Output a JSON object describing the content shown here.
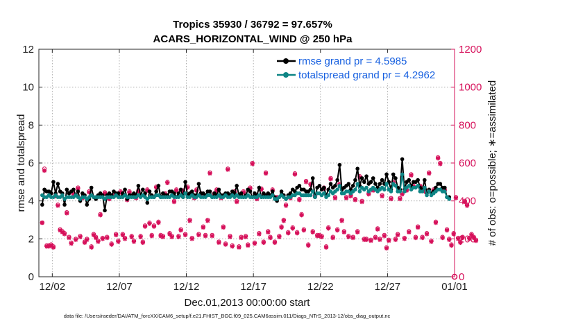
{
  "chart_data": {
    "type": "line",
    "title_line1": "Tropics 35930 / 36792 = 97.657%",
    "title_line2": "ACARS_HORIZONTAL_WIND @ 250 hPa",
    "xlabel": "Dec.01,2013 00:00:00 start",
    "ylabel_left": "rmse and totalspread",
    "ylabel_right": "# of obs: o=possible; ∗=assimilated",
    "xlim": [
      0,
      31
    ],
    "ylim_left": [
      0,
      12
    ],
    "ylim_right": [
      0,
      1200
    ],
    "x_ticks": [
      {
        "x": 1,
        "label": "12/02"
      },
      {
        "x": 6,
        "label": "12/07"
      },
      {
        "x": 11,
        "label": "12/12"
      },
      {
        "x": 16,
        "label": "12/17"
      },
      {
        "x": 21,
        "label": "12/22"
      },
      {
        "x": 26,
        "label": "12/27"
      },
      {
        "x": 31,
        "label": "01/01"
      }
    ],
    "y_ticks_left": [
      "0",
      "2",
      "4",
      "6",
      "8",
      "10",
      "12"
    ],
    "y_ticks_right": [
      "0",
      "200",
      "400",
      "600",
      "800",
      "1000",
      "1200"
    ],
    "legend": {
      "rmse": "rmse grand pr = 4.5985",
      "spread": "totalspread grand pr = 4.2962"
    },
    "footnote": "data file: /Users/raeder/DAI/ATM_forcXX/CAM6_setup/f.e21.FHIST_BGC.f09_025.CAM6assim.011/Diags_NTrS_2013-12/obs_diag_output.nc",
    "colors": {
      "rmse": "#000000",
      "spread": "#0e8585",
      "obs": "#d6105a"
    },
    "rmse_series": [
      3.8,
      4.6,
      4.5,
      4.5,
      4.4,
      5.0,
      4.4,
      4.9,
      4.5,
      4.4,
      3.8,
      4.6,
      4.4,
      4.5,
      4.6,
      4.3,
      4.5,
      4.0,
      4.4,
      4.3,
      3.8,
      4.1,
      4.7,
      4.2,
      4.1,
      4.3,
      4.4,
      4.3,
      3.5,
      4.3,
      4.4,
      4.3,
      4.5,
      4.4,
      4.4,
      4.2,
      4.4,
      4.6,
      4.1,
      4.3,
      4.3,
      4.4,
      4.3,
      4.8,
      4.3,
      4.6,
      4.4,
      3.9,
      4.5,
      4.3,
      4.2,
      4.5,
      4.8,
      4.2,
      4.4,
      4.3,
      4.3,
      4.5,
      4.5,
      4.4,
      4.2,
      4.4,
      4.6,
      4.2,
      5.0,
      4.3,
      4.4,
      4.5,
      4.3,
      4.3,
      4.9,
      4.4,
      4.4,
      4.3,
      4.5,
      4.5,
      4.2,
      4.4,
      4.3,
      4.6,
      4.3,
      4.3,
      4.4,
      4.4,
      4.3,
      4.5,
      4.4,
      4.8,
      4.3,
      4.4,
      4.2,
      4.3,
      4.6,
      4.5,
      4.2,
      4.4,
      4.3,
      4.7,
      4.2,
      4.4,
      4.3,
      4.4,
      4.3,
      4.5,
      4.2,
      4.0,
      4.2,
      4.5,
      4.3,
      4.1,
      4.3,
      4.4,
      4.6,
      4.5,
      4.7,
      4.8,
      4.6,
      4.6,
      4.5,
      4.5,
      4.6,
      5.2,
      4.2,
      4.7,
      4.8,
      4.6,
      4.7,
      4.3,
      4.6,
      4.9,
      4.7,
      4.8,
      5.1,
      5.9,
      4.6,
      4.7,
      4.8,
      4.9,
      4.6,
      4.8,
      5.1,
      5.7,
      4.8,
      5.2,
      5.0,
      5.3,
      4.9,
      5.0,
      5.2,
      4.9,
      4.7,
      4.9,
      5.1,
      4.9,
      5.4,
      5.0,
      4.6,
      5.4,
      5.2,
      4.7,
      4.6,
      6.2,
      4.6,
      5.0,
      5.1,
      4.8,
      5.0,
      5.0,
      5.1,
      4.7,
      4.6,
      5.1,
      4.4,
      4.6,
      4.4,
      4.5,
      4.7,
      4.9,
      4.9,
      4.7,
      4.7,
      4.2,
      4.2
    ],
    "spread_series": [
      4.3,
      4.2,
      4.2,
      4.3,
      4.2,
      4.2,
      4.3,
      4.2,
      4.2,
      4.3,
      4.1,
      4.2,
      4.2,
      4.2,
      4.2,
      4.3,
      4.2,
      4.1,
      4.2,
      4.2,
      4.1,
      4.2,
      4.3,
      4.2,
      4.2,
      4.2,
      4.2,
      4.2,
      4.1,
      4.2,
      4.2,
      4.2,
      4.2,
      4.3,
      4.2,
      4.2,
      4.2,
      4.3,
      4.2,
      4.2,
      4.2,
      4.2,
      4.2,
      4.3,
      4.2,
      4.3,
      4.2,
      4.1,
      4.2,
      4.2,
      4.2,
      4.3,
      4.3,
      4.2,
      4.2,
      4.2,
      4.2,
      4.2,
      4.3,
      4.2,
      4.2,
      4.2,
      4.3,
      4.2,
      4.4,
      4.2,
      4.2,
      4.3,
      4.2,
      4.2,
      4.3,
      4.2,
      4.2,
      4.2,
      4.3,
      4.3,
      4.2,
      4.2,
      4.2,
      4.3,
      4.2,
      4.2,
      4.3,
      4.2,
      4.2,
      4.3,
      4.2,
      4.3,
      4.2,
      4.2,
      4.2,
      4.2,
      4.3,
      4.2,
      4.2,
      4.2,
      4.2,
      4.3,
      4.2,
      4.2,
      4.2,
      4.2,
      4.2,
      4.3,
      4.1,
      4.1,
      4.2,
      4.3,
      4.2,
      4.1,
      4.2,
      4.2,
      4.3,
      4.3,
      4.4,
      4.4,
      4.3,
      4.3,
      4.3,
      4.3,
      4.3,
      4.5,
      4.2,
      4.4,
      4.4,
      4.3,
      4.4,
      4.2,
      4.3,
      4.5,
      4.4,
      4.5,
      4.6,
      4.8,
      4.4,
      4.4,
      4.5,
      4.5,
      4.4,
      4.5,
      4.6,
      4.9,
      4.5,
      4.7,
      4.6,
      4.7,
      4.5,
      4.6,
      4.7,
      4.6,
      4.5,
      4.6,
      4.7,
      4.6,
      4.9,
      4.6,
      4.5,
      4.9,
      4.8,
      4.5,
      4.5,
      5.4,
      4.5,
      4.7,
      4.8,
      4.6,
      4.7,
      4.7,
      4.8,
      4.5,
      4.5,
      4.7,
      4.3,
      4.5,
      4.3,
      4.4,
      4.5,
      4.6,
      4.6,
      4.5,
      4.5,
      4.2,
      4.1
    ],
    "obs_possible": [
      285,
      570,
      165,
      165,
      170,
      160,
      430,
      380,
      250,
      240,
      230,
      340,
      210,
      180,
      440,
      200,
      470,
      215,
      420,
      185,
      200,
      450,
      160,
      225,
      210,
      190,
      330,
      205,
      445,
      210,
      415,
      175,
      430,
      225,
      190,
      450,
      225,
      205,
      410,
      450,
      215,
      190,
      420,
      455,
      215,
      185,
      270,
      460,
      285,
      220,
      270,
      475,
      290,
      220,
      215,
      440,
      500,
      230,
      215,
      400,
      460,
      215,
      250,
      455,
      225,
      475,
      300,
      205,
      420,
      460,
      225,
      440,
      265,
      220,
      300,
      550,
      220,
      440,
      460,
      185,
      420,
      265,
      175,
      570,
      215,
      165,
      450,
      400,
      160,
      210,
      450,
      215,
      170,
      470,
      600,
      180,
      415,
      230,
      465,
      185,
      550,
      240,
      210,
      460,
      185,
      420,
      215,
      265,
      300,
      380,
      235,
      420,
      260,
      545,
      235,
      410,
      330,
      250,
      505,
      170,
      490,
      240,
      430,
      220,
      220,
      215,
      470,
      160,
      260,
      520,
      210,
      420,
      250,
      490,
      300,
      240,
      420,
      215,
      430,
      210,
      410,
      240,
      530,
      400,
      200,
      200,
      440,
      195,
      460,
      210,
      255,
      200,
      430,
      220,
      155,
      195,
      415,
      500,
      200,
      225,
      415,
      440,
      205,
      460,
      240,
      540,
      480,
      210,
      265,
      480,
      210,
      455,
      230,
      550,
      190,
      460,
      290,
      630,
      600,
      210,
      460,
      250,
      200,
      170,
      230,
      420,
      205,
      185,
      210,
      400,
      380,
      205,
      225,
      210,
      195
    ],
    "obs_assimilated": [
      285,
      560,
      160,
      160,
      165,
      155,
      425,
      375,
      245,
      235,
      225,
      335,
      205,
      175,
      435,
      195,
      465,
      210,
      415,
      180,
      195,
      445,
      155,
      220,
      205,
      185,
      325,
      200,
      440,
      205,
      410,
      170,
      425,
      220,
      185,
      445,
      220,
      200,
      405,
      445,
      210,
      185,
      415,
      450,
      210,
      180,
      265,
      455,
      280,
      215,
      265,
      470,
      285,
      215,
      210,
      435,
      495,
      225,
      210,
      395,
      455,
      210,
      245,
      450,
      220,
      470,
      295,
      200,
      415,
      455,
      220,
      435,
      260,
      215,
      295,
      545,
      215,
      435,
      455,
      180,
      415,
      260,
      170,
      565,
      210,
      160,
      445,
      395,
      155,
      205,
      445,
      210,
      165,
      465,
      595,
      175,
      410,
      225,
      460,
      180,
      545,
      235,
      205,
      455,
      180,
      415,
      210,
      260,
      295,
      375,
      230,
      415,
      255,
      540,
      230,
      405,
      325,
      245,
      500,
      165,
      485,
      235,
      425,
      215,
      215,
      210,
      465,
      155,
      255,
      515,
      205,
      415,
      245,
      485,
      295,
      235,
      415,
      210,
      425,
      205,
      405,
      235,
      525,
      395,
      195,
      195,
      435,
      190,
      455,
      205,
      250,
      195,
      425,
      215,
      150,
      190,
      410,
      495,
      195,
      220,
      410,
      435,
      200,
      455,
      235,
      535,
      475,
      205,
      260,
      475,
      205,
      450,
      225,
      545,
      185,
      455,
      285,
      625,
      595,
      205,
      455,
      245,
      195,
      165,
      225,
      415,
      200,
      180,
      205,
      395,
      375,
      200,
      220,
      205,
      190
    ]
  }
}
